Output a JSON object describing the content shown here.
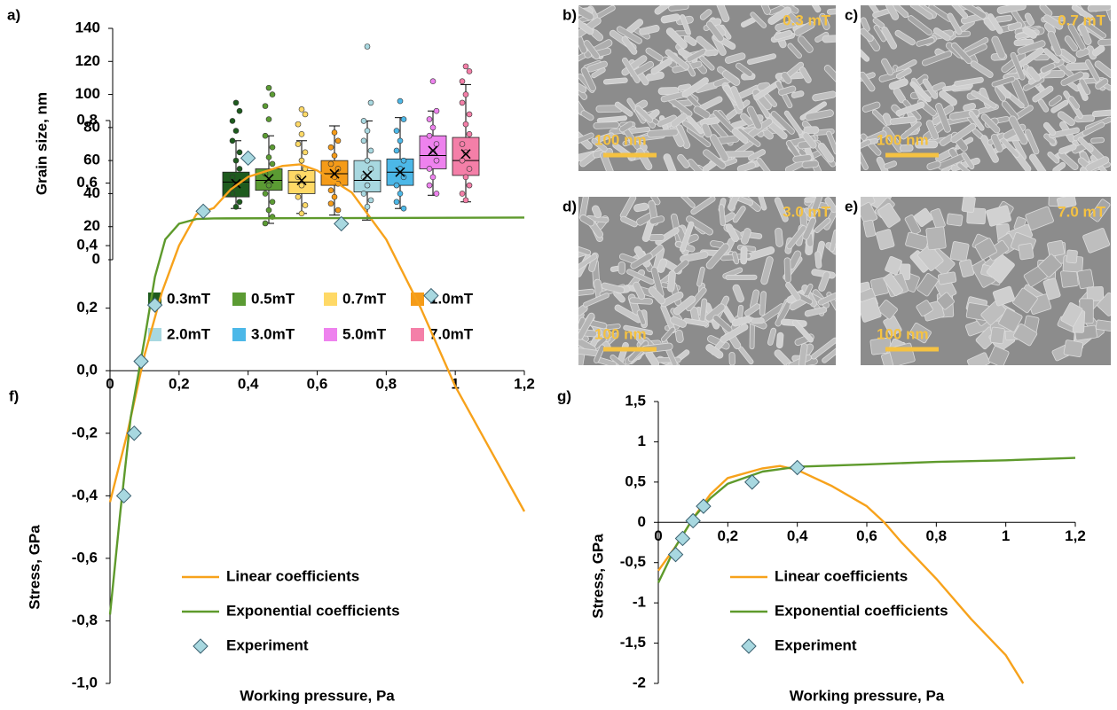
{
  "chart_data": [
    {
      "type": "box",
      "panel": "a)",
      "y_label": "Grain size, nm",
      "ylim": [
        0,
        140
      ],
      "yticks": [
        0,
        20,
        40,
        60,
        80,
        100,
        120,
        140
      ],
      "legend": "bottom",
      "boxes": [
        {
          "name": "0.3mT",
          "color": "#1e5b1e",
          "min": 31,
          "q1": 38,
          "median": 47,
          "q3": 53,
          "max": 72,
          "mean": 46,
          "points": [
            95,
            90,
            84,
            78,
            72,
            65,
            60,
            55,
            50,
            45,
            40,
            35,
            32
          ]
        },
        {
          "name": "0.5mT",
          "color": "#5b9b33",
          "min": 22,
          "q1": 42,
          "median": 48,
          "q3": 55,
          "max": 75,
          "mean": 49,
          "points": [
            104,
            100,
            93,
            85,
            75,
            68,
            62,
            58,
            52,
            45,
            40,
            35,
            30,
            26,
            22
          ]
        },
        {
          "name": "0.7mT",
          "color": "#ffd966",
          "min": 28,
          "q1": 40,
          "median": 47,
          "q3": 54,
          "max": 72,
          "mean": 48,
          "points": [
            91,
            88,
            82,
            76,
            70,
            65,
            60,
            55,
            50,
            45,
            38,
            33,
            28
          ]
        },
        {
          "name": "1.0mT",
          "color": "#f59b18",
          "min": 27,
          "q1": 45,
          "median": 52,
          "q3": 60,
          "max": 81,
          "mean": 52,
          "points": [
            77,
            72,
            68,
            63,
            58,
            55,
            50,
            46,
            42,
            38,
            34,
            30
          ]
        },
        {
          "name": "2.0mT",
          "color": "#a8d8e0",
          "min": 24,
          "q1": 41,
          "median": 48,
          "q3": 60,
          "max": 84,
          "mean": 51,
          "points": [
            129,
            95,
            84,
            78,
            72,
            66,
            60,
            55,
            50,
            45,
            40,
            36,
            32
          ]
        },
        {
          "name": "3.0mT",
          "color": "#4cb8e8",
          "min": 31,
          "q1": 45,
          "median": 53,
          "q3": 61,
          "max": 86,
          "mean": 53,
          "points": [
            96,
            85,
            78,
            72,
            66,
            60,
            55,
            50,
            45,
            40,
            35,
            31
          ]
        },
        {
          "name": "5.0mT",
          "color": "#ee82ee",
          "min": 39,
          "q1": 55,
          "median": 63,
          "q3": 75,
          "max": 90,
          "mean": 66,
          "points": [
            108,
            90,
            85,
            80,
            75,
            70,
            65,
            60,
            55,
            50,
            45,
            40
          ]
        },
        {
          "name": "7.0mT",
          "color": "#f47fa8",
          "min": 35,
          "q1": 51,
          "median": 60,
          "q3": 74,
          "max": 106,
          "mean": 64,
          "points": [
            117,
            114,
            108,
            100,
            95,
            88,
            82,
            76,
            70,
            65,
            60,
            55,
            50,
            45,
            40,
            36
          ]
        }
      ]
    },
    {
      "type": "line",
      "panel": "f)",
      "y_label": "Stress, GPa",
      "x_label": "Working pressure, Pa",
      "legend": "lower left",
      "xlim": [
        0,
        1.2
      ],
      "xticks": [
        0,
        {
          "value": 0.2,
          "label": "0,2"
        },
        {
          "value": 0.4,
          "label": "0,4"
        },
        {
          "value": 0.6,
          "label": "0,6"
        },
        {
          "value": 0.8,
          "label": "0,8"
        },
        {
          "value": 1,
          "label": "1"
        },
        {
          "value": 1.2,
          "label": "1,2"
        }
      ],
      "ylim": [
        -1,
        0.8
      ],
      "yticks": [
        {
          "value": -1,
          "label": "-1,0"
        },
        {
          "value": -0.8,
          "label": "-0,8"
        },
        {
          "value": -0.6,
          "label": "-0,6"
        },
        {
          "value": -0.4,
          "label": "-0,4"
        },
        {
          "value": -0.2,
          "label": "-0,2"
        },
        {
          "value": 0,
          "label": "0,0"
        },
        {
          "value": 0.2,
          "label": "0,2"
        },
        {
          "value": 0.4,
          "label": "0,4"
        },
        {
          "value": 0.6,
          "label": "0,6"
        },
        {
          "value": 0.8,
          "label": "0,8"
        }
      ],
      "series": [
        {
          "name": "Linear coefficients",
          "color": "#f7a21b",
          "marker": "none",
          "x": [
            0,
            0.05,
            0.1,
            0.15,
            0.2,
            0.25,
            0.3,
            0.35,
            0.4,
            0.5,
            0.55,
            0.6,
            0.7,
            0.8,
            0.9,
            1,
            1.1,
            1.2
          ],
          "values": [
            -0.42,
            -0.2,
            0.05,
            0.25,
            0.4,
            0.5,
            0.52,
            0.58,
            0.62,
            0.655,
            0.66,
            0.64,
            0.57,
            0.42,
            0.2,
            -0.05,
            -0.25,
            -0.45
          ]
        },
        {
          "name": "Exponential coefficients",
          "color": "#5e9a2c",
          "marker": "none",
          "x": [
            0,
            0.03,
            0.06,
            0.1,
            0.13,
            0.16,
            0.2,
            0.25,
            0.3,
            0.6,
            1.2
          ],
          "values": [
            -0.78,
            -0.45,
            -0.15,
            0.1,
            0.3,
            0.42,
            0.47,
            0.485,
            0.487,
            0.488,
            0.49
          ]
        },
        {
          "name": "Experiment",
          "color": "#a8d8e0",
          "marker": "diamond",
          "x": [
            0.04,
            0.07,
            0.09,
            0.13,
            0.27,
            0.4,
            0.67,
            0.93
          ],
          "values": [
            -0.4,
            -0.2,
            0.03,
            0.21,
            0.51,
            0.68,
            0.47,
            0.24
          ]
        }
      ]
    },
    {
      "type": "line",
      "panel": "g)",
      "y_label": "Stress, GPa",
      "x_label": "Working pressure, Pa",
      "legend": "lower left",
      "xlim": [
        0,
        1.2
      ],
      "xticks": [
        0,
        {
          "value": 0.2,
          "label": "0,2"
        },
        {
          "value": 0.4,
          "label": "0,4"
        },
        {
          "value": 0.6,
          "label": "0,6"
        },
        {
          "value": 0.8,
          "label": "0,8"
        },
        {
          "value": 1,
          "label": "1"
        },
        {
          "value": 1.2,
          "label": "1,2"
        }
      ],
      "ylim": [
        -2,
        1.5
      ],
      "yticks": [
        -2,
        {
          "value": -1.5,
          "label": "-1,5"
        },
        -1,
        {
          "value": -0.5,
          "label": "-0,5"
        },
        0,
        {
          "value": 0.5,
          "label": "0,5"
        },
        1,
        {
          "value": 1.5,
          "label": "1,5"
        }
      ],
      "series": [
        {
          "name": "Linear coefficients",
          "color": "#f7a21b",
          "marker": "none",
          "x": [
            0,
            0.05,
            0.1,
            0.15,
            0.2,
            0.3,
            0.35,
            0.4,
            0.5,
            0.6,
            0.65,
            0.7,
            0.8,
            0.9,
            1,
            1.05
          ],
          "values": [
            -0.6,
            -0.3,
            0.05,
            0.35,
            0.55,
            0.67,
            0.7,
            0.65,
            0.45,
            0.2,
            0,
            -0.25,
            -0.7,
            -1.2,
            -1.65,
            -2
          ]
        },
        {
          "name": "Exponential coefficients",
          "color": "#5e9a2c",
          "marker": "none",
          "x": [
            0,
            0.05,
            0.1,
            0.15,
            0.2,
            0.3,
            0.4,
            0.6,
            0.8,
            1,
            1.2
          ],
          "values": [
            -0.75,
            -0.3,
            0.05,
            0.3,
            0.48,
            0.63,
            0.69,
            0.72,
            0.75,
            0.77,
            0.8
          ]
        },
        {
          "name": "Experiment",
          "color": "#a8d8e0",
          "marker": "diamond",
          "x": [
            0.05,
            0.07,
            0.1,
            0.13,
            0.27,
            0.4
          ],
          "values": [
            -0.4,
            -0.2,
            0.02,
            0.2,
            0.5,
            0.68
          ]
        }
      ]
    }
  ],
  "images": [
    {
      "panel": "b)",
      "field": "0.3 mT",
      "scale": "100 nm"
    },
    {
      "panel": "c)",
      "field": "0.7 mT",
      "scale": "100 nm"
    },
    {
      "panel": "d)",
      "field": "3.0 mT",
      "scale": "100 nm"
    },
    {
      "panel": "e)",
      "field": "7.0 mT",
      "scale": "100 nm"
    }
  ]
}
